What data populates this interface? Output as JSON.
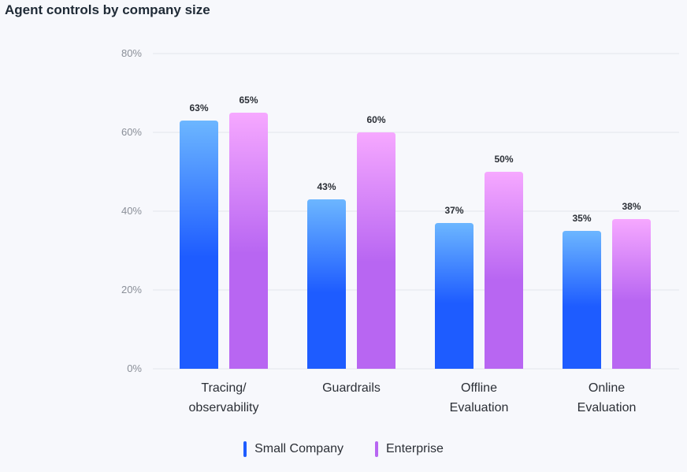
{
  "title": "Agent controls by company size",
  "colors": {
    "small_top": "#6cb6ff",
    "small_bottom": "#1e5cff",
    "enterprise_top": "#f6a8ff",
    "enterprise_bottom": "#b866f2",
    "grid": "#e3e6ec"
  },
  "chart_data": {
    "type": "bar",
    "title": "Agent controls by company size",
    "categories": [
      "Tracing/\nobservability",
      "Guardrails",
      "Offline\nEvaluation",
      "Online\nEvaluation"
    ],
    "series": [
      {
        "name": "Small Company",
        "values": [
          63,
          43,
          37,
          35
        ],
        "labels": [
          "63%",
          "43%",
          "37%",
          "35%"
        ]
      },
      {
        "name": "Enterprise",
        "values": [
          65,
          60,
          50,
          38
        ],
        "labels": [
          "65%",
          "60%",
          "50%",
          "38%"
        ]
      }
    ],
    "ylim": [
      0,
      80
    ],
    "yticks": [
      0,
      20,
      40,
      60,
      80
    ],
    "ytick_labels": [
      "0%",
      "20%",
      "40%",
      "60%",
      "80%"
    ],
    "grid": true,
    "legend": "bottom-center"
  }
}
